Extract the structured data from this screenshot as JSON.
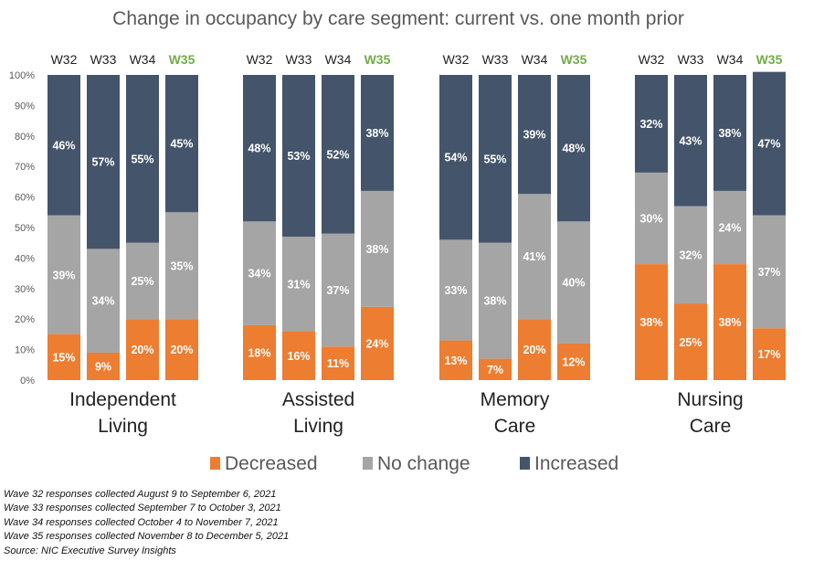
{
  "chart_data": {
    "type": "stacked-bar-100",
    "title": "Change in occupancy by care segment: current vs. one month prior",
    "ylim": [
      0,
      100
    ],
    "yticks": [
      "0%",
      "10%",
      "20%",
      "30%",
      "40%",
      "50%",
      "60%",
      "70%",
      "80%",
      "90%",
      "100%"
    ],
    "waves": [
      "W32",
      "W33",
      "W34",
      "W35"
    ],
    "highlight_wave": "W35",
    "groups": [
      {
        "label_lines": [
          "Independent",
          "Living"
        ],
        "decreased": [
          15,
          9,
          20,
          20
        ],
        "no_change": [
          39,
          34,
          25,
          35
        ],
        "increased": [
          46,
          57,
          55,
          45
        ]
      },
      {
        "label_lines": [
          "Assisted",
          "Living"
        ],
        "decreased": [
          18,
          16,
          11,
          24
        ],
        "no_change": [
          34,
          31,
          37,
          38
        ],
        "increased": [
          48,
          53,
          52,
          38
        ]
      },
      {
        "label_lines": [
          "Memory",
          "Care"
        ],
        "decreased": [
          13,
          7,
          20,
          12
        ],
        "no_change": [
          33,
          38,
          41,
          40
        ],
        "increased": [
          54,
          55,
          39,
          48
        ]
      },
      {
        "label_lines": [
          "Nursing",
          "Care"
        ],
        "decreased": [
          38,
          25,
          38,
          17
        ],
        "no_change": [
          30,
          32,
          24,
          37
        ],
        "increased": [
          32,
          43,
          38,
          47
        ]
      }
    ],
    "series": [
      {
        "key": "decreased",
        "name": "Decreased",
        "color": "#ed7d31"
      },
      {
        "key": "no_change",
        "name": "No change",
        "color": "#a5a5a5"
      },
      {
        "key": "increased",
        "name": "Increased",
        "color": "#44546a"
      }
    ],
    "highlight_color": "#70ad47"
  },
  "notes": [
    "Wave 32 responses collected  August 9 to September 6, 2021",
    "Wave 33 responses collected  September 7 to October 3, 2021",
    "Wave 34 responses collected  October 4 to November 7, 2021",
    "Wave 35 responses collected  November 8 to December 5, 2021",
    "Source: NIC Executive Survey Insights"
  ]
}
